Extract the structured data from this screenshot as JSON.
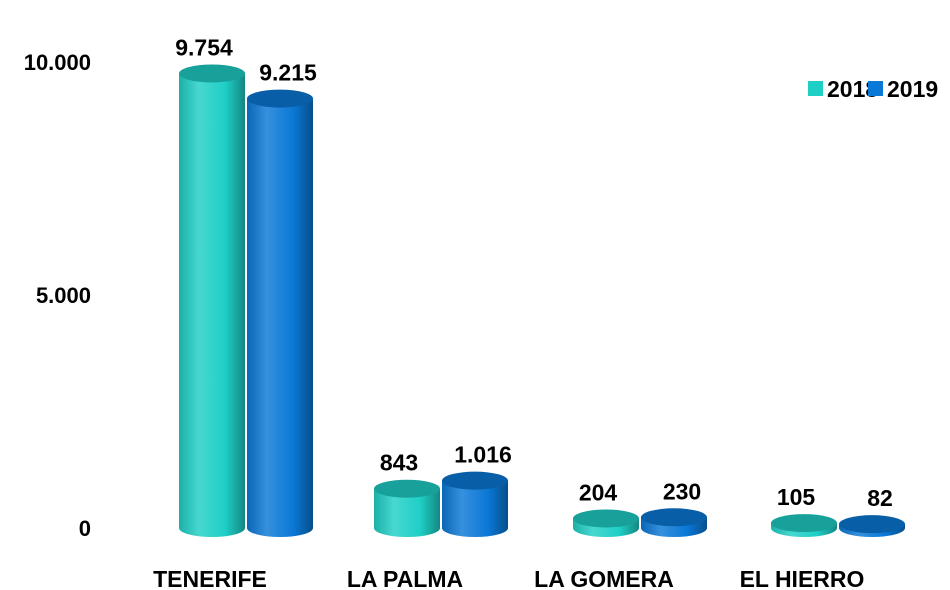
{
  "chart_data": {
    "type": "bar",
    "categories": [
      "TENERIFE",
      "LA PALMA",
      "LA GOMERA",
      "EL HIERRO"
    ],
    "series": [
      {
        "name": "2018",
        "color": "#1ecfc6",
        "values": [
          9754,
          843,
          204,
          105
        ],
        "labels": [
          "9.754",
          "843",
          "204",
          "105"
        ]
      },
      {
        "name": "2019",
        "color": "#0a78d6",
        "values": [
          9215,
          1016,
          230,
          82
        ],
        "labels": [
          "9.215",
          "1.016",
          "230",
          "82"
        ]
      }
    ],
    "y_ticks": [
      {
        "value": 0,
        "label": "0"
      },
      {
        "value": 5000,
        "label": "5.000"
      },
      {
        "value": 10000,
        "label": "10.000"
      }
    ],
    "ylim": [
      0,
      10000
    ],
    "grid": false,
    "legend_position": "top-right",
    "style": "3d-cylinder"
  }
}
